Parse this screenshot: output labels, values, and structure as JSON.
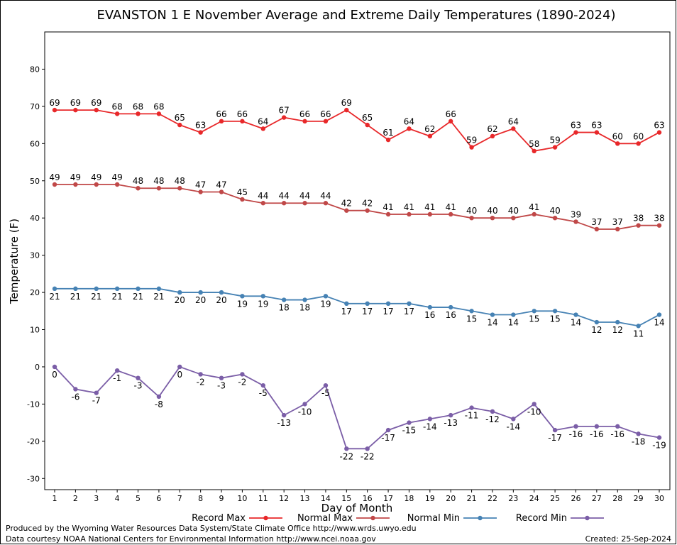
{
  "chart_data": {
    "type": "line",
    "title": "EVANSTON 1 E November Average and Extreme Daily Temperatures (1890-2024)",
    "xlabel": "Day of Month",
    "ylabel": "Temperature (F)",
    "ylim": [
      -33,
      90
    ],
    "y_ticks": [
      -30,
      -20,
      -10,
      0,
      10,
      20,
      30,
      40,
      50,
      60,
      70,
      80
    ],
    "grid": true,
    "legend_position": "bottom",
    "categories": [
      1,
      2,
      3,
      4,
      5,
      6,
      7,
      8,
      9,
      10,
      11,
      12,
      13,
      14,
      15,
      16,
      17,
      18,
      19,
      20,
      21,
      22,
      23,
      24,
      25,
      26,
      27,
      28,
      29,
      30
    ],
    "series": [
      {
        "name": "Record Max",
        "color": "#e8282a",
        "label_pos": "above",
        "values": [
          69,
          69,
          69,
          68,
          68,
          68,
          65,
          63,
          66,
          66,
          64,
          67,
          66,
          66,
          69,
          65,
          61,
          64,
          62,
          66,
          59,
          62,
          64,
          58,
          59,
          63,
          63,
          60,
          60,
          63
        ]
      },
      {
        "name": "Normal Max",
        "color": "#c04848",
        "label_pos": "above",
        "values": [
          49,
          49,
          49,
          49,
          48,
          48,
          48,
          47,
          47,
          45,
          44,
          44,
          44,
          44,
          42,
          42,
          41,
          41,
          41,
          41,
          40,
          40,
          40,
          41,
          40,
          39,
          37,
          37,
          38,
          38
        ]
      },
      {
        "name": "Normal Min",
        "color": "#4682b4",
        "label_pos": "below",
        "values": [
          21,
          21,
          21,
          21,
          21,
          21,
          20,
          20,
          20,
          19,
          19,
          18,
          18,
          19,
          17,
          17,
          17,
          17,
          16,
          16,
          15,
          14,
          14,
          15,
          15,
          14,
          12,
          12,
          11,
          14
        ]
      },
      {
        "name": "Record Min",
        "color": "#7b5ea7",
        "label_pos": "below",
        "values": [
          0,
          -6,
          -7,
          -1,
          -3,
          -8,
          0,
          -2,
          -3,
          -2,
          -5,
          -13,
          -10,
          -5,
          -22,
          -22,
          -17,
          -15,
          -14,
          -13,
          -11,
          -12,
          -14,
          -10,
          -17,
          -16,
          -16,
          -16,
          -18,
          -19
        ]
      }
    ]
  },
  "footer": {
    "credit_line1": "Produced by the Wyoming Water Resources Data System/State Climate Office http://www.wrds.uwyo.edu",
    "credit_line2": "Data courtesy NOAA National Centers for Environmental Information http://www.ncei.noaa.gov",
    "created": "Created:  25-Sep-2024"
  }
}
